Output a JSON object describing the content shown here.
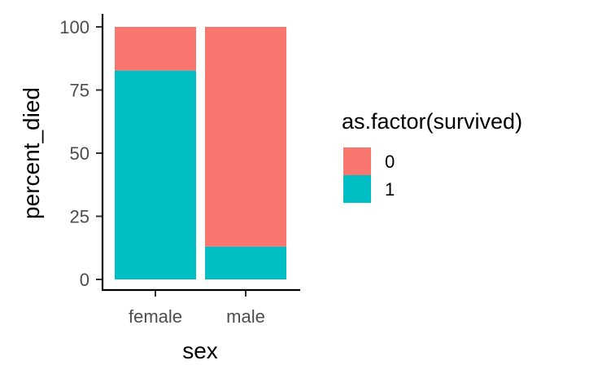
{
  "chart_data": {
    "type": "bar",
    "stacked": true,
    "categories": [
      "female",
      "male"
    ],
    "series": [
      {
        "name": "0",
        "color": "#F8766D",
        "values": [
          17.3,
          87.0
        ]
      },
      {
        "name": "1",
        "color": "#00BFC4",
        "values": [
          82.7,
          13.0
        ]
      }
    ],
    "xlabel": "sex",
    "ylabel": "percent_died",
    "ylim": [
      0,
      100
    ],
    "yticks": [
      0,
      25,
      50,
      75,
      100
    ],
    "grid": false,
    "legend": {
      "title": "as.factor(survived)",
      "placement": "right"
    }
  }
}
